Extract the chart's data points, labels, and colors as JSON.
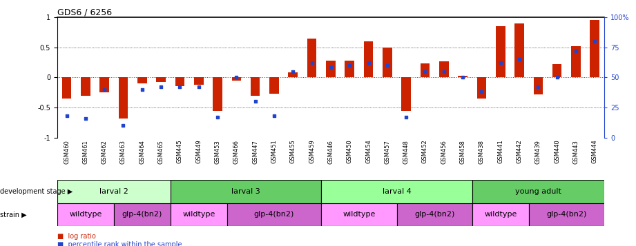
{
  "title": "GDS6 / 6256",
  "samples": [
    "GSM460",
    "GSM461",
    "GSM462",
    "GSM463",
    "GSM464",
    "GSM465",
    "GSM445",
    "GSM449",
    "GSM453",
    "GSM466",
    "GSM447",
    "GSM451",
    "GSM455",
    "GSM459",
    "GSM446",
    "GSM450",
    "GSM454",
    "GSM457",
    "GSM448",
    "GSM452",
    "GSM456",
    "GSM458",
    "GSM438",
    "GSM441",
    "GSM442",
    "GSM439",
    "GSM440",
    "GSM443",
    "GSM444"
  ],
  "log_ratio": [
    -0.35,
    -0.3,
    -0.25,
    -0.68,
    -0.1,
    -0.08,
    -0.14,
    -0.12,
    -0.55,
    -0.05,
    -0.3,
    -0.27,
    0.08,
    0.65,
    0.28,
    0.28,
    0.6,
    0.5,
    -0.55,
    0.23,
    0.27,
    0.03,
    -0.35,
    0.85,
    0.9,
    -0.28,
    0.22,
    0.52,
    0.95
  ],
  "percentile": [
    18,
    16,
    40,
    10,
    40,
    42,
    42,
    42,
    17,
    50,
    30,
    18,
    55,
    62,
    58,
    60,
    62,
    60,
    17,
    55,
    55,
    50,
    38,
    62,
    65,
    42,
    50,
    72,
    80
  ],
  "development_stages": [
    {
      "label": "larval 2",
      "start": 0,
      "end": 6,
      "color": "#ccffcc"
    },
    {
      "label": "larval 3",
      "start": 6,
      "end": 14,
      "color": "#66cc66"
    },
    {
      "label": "larval 4",
      "start": 14,
      "end": 22,
      "color": "#99ff99"
    },
    {
      "label": "young adult",
      "start": 22,
      "end": 29,
      "color": "#66cc66"
    }
  ],
  "strains": [
    {
      "label": "wildtype",
      "start": 0,
      "end": 3,
      "color": "#ff99ff"
    },
    {
      "label": "glp-4(bn2)",
      "start": 3,
      "end": 6,
      "color": "#cc66cc"
    },
    {
      "label": "wildtype",
      "start": 6,
      "end": 9,
      "color": "#ff99ff"
    },
    {
      "label": "glp-4(bn2)",
      "start": 9,
      "end": 14,
      "color": "#cc66cc"
    },
    {
      "label": "wildtype",
      "start": 14,
      "end": 18,
      "color": "#ff99ff"
    },
    {
      "label": "glp-4(bn2)",
      "start": 18,
      "end": 22,
      "color": "#cc66cc"
    },
    {
      "label": "wildtype",
      "start": 22,
      "end": 25,
      "color": "#ff99ff"
    },
    {
      "label": "glp-4(bn2)",
      "start": 25,
      "end": 29,
      "color": "#cc66cc"
    }
  ],
  "bar_color": "#cc2200",
  "dot_color": "#2244cc",
  "ylim": [
    -1,
    1
  ],
  "yticks": [
    -1,
    -0.5,
    0,
    0.5,
    1
  ],
  "y2ticks": [
    0,
    25,
    50,
    75,
    100
  ]
}
